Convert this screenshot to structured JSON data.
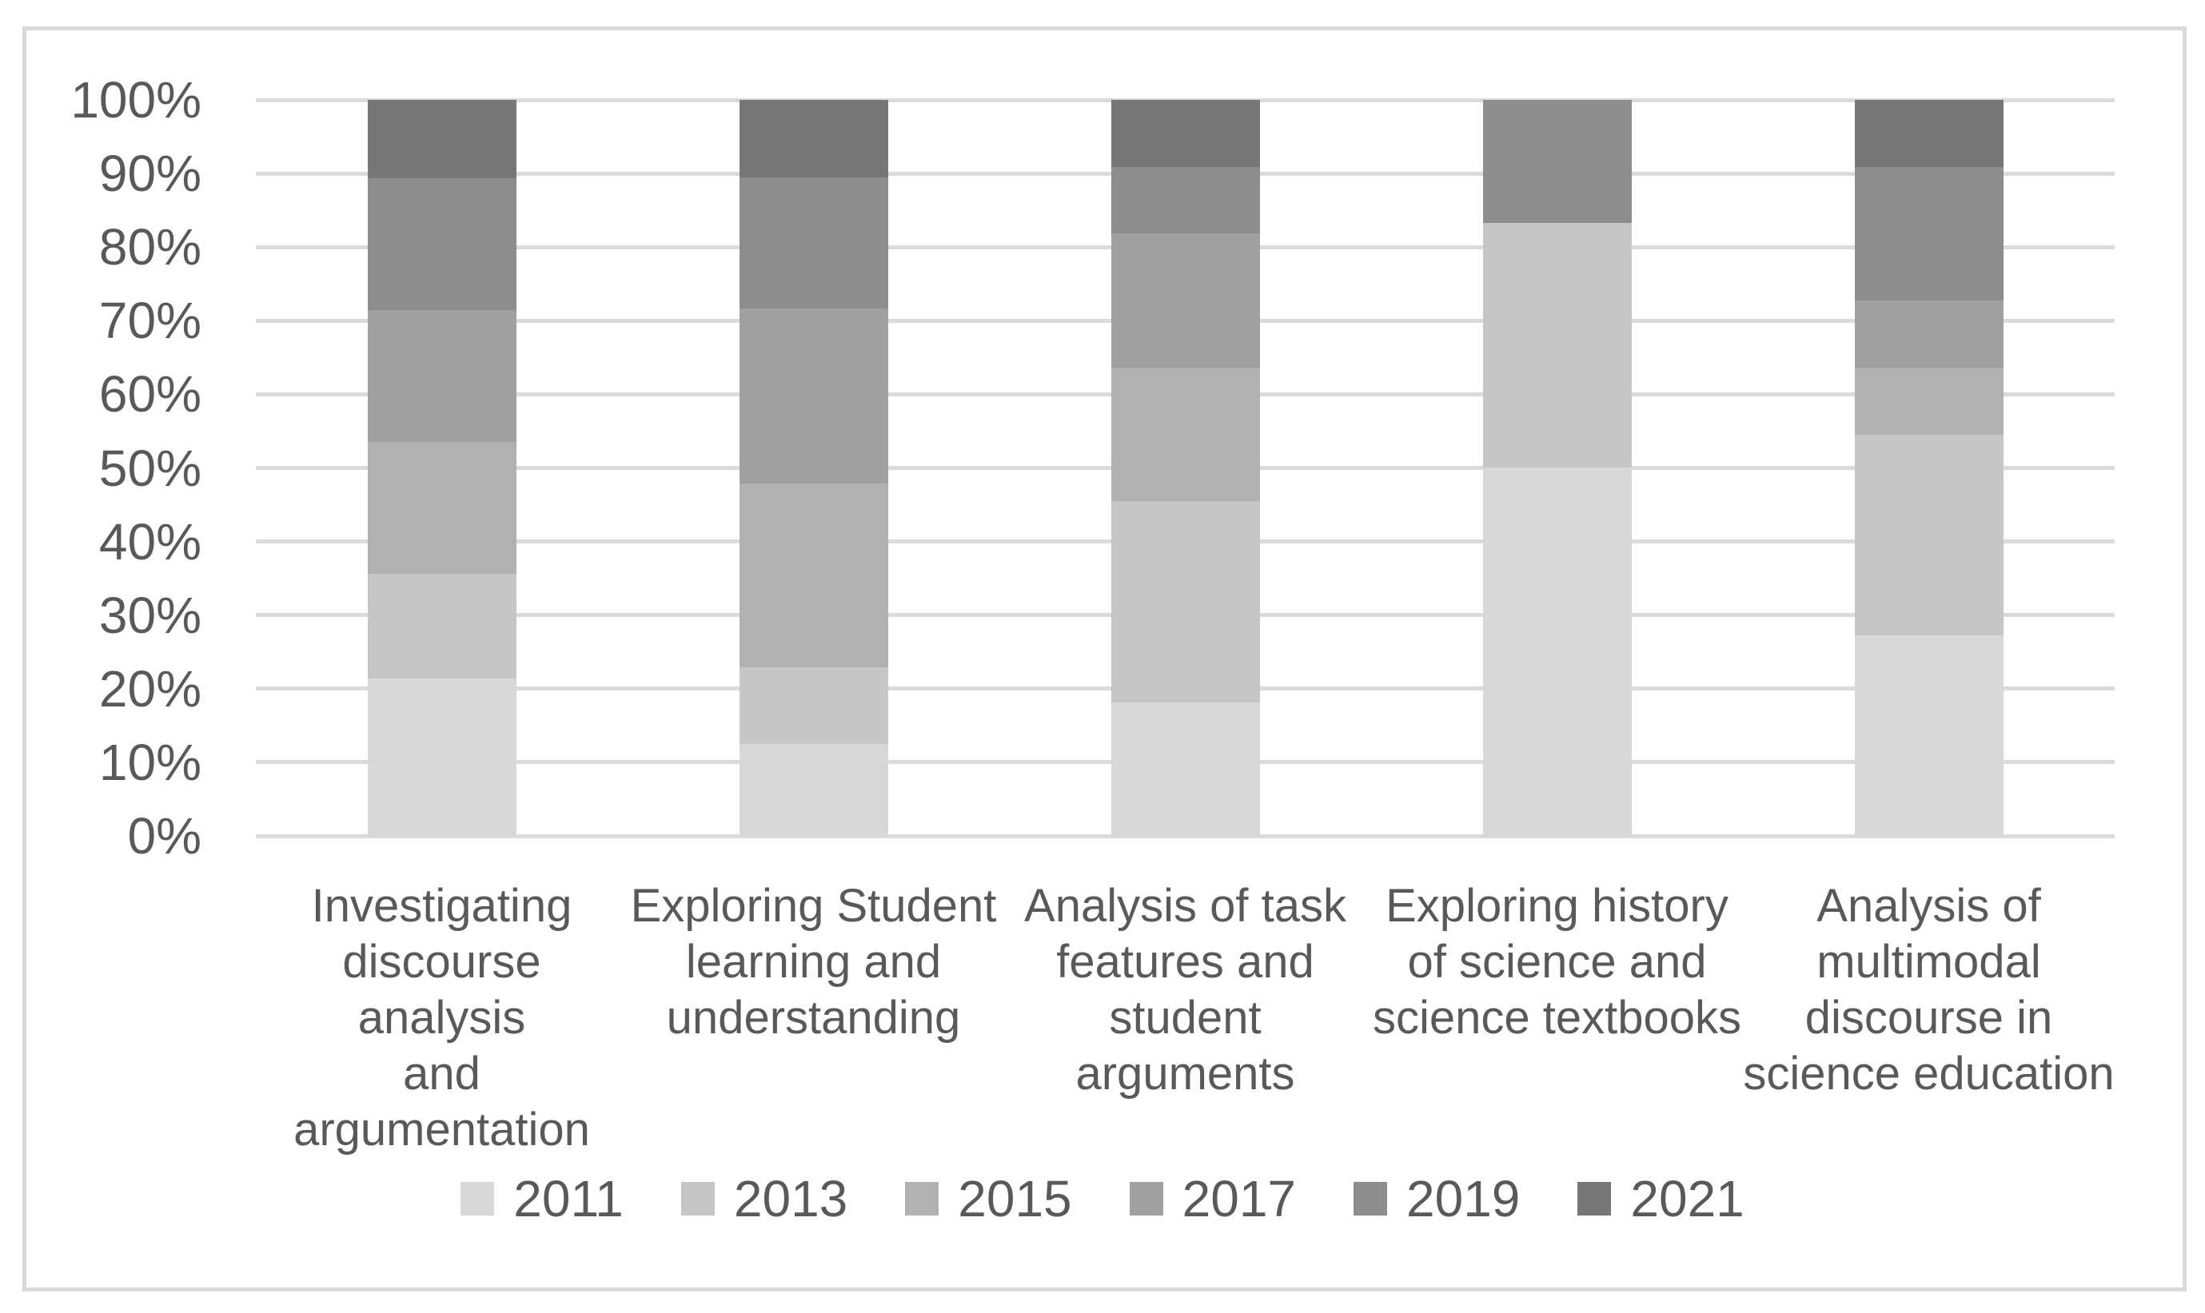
{
  "figure": {
    "background": "#ffffff",
    "frame_border_color": "#d9d9d9",
    "text_color": "#595959"
  },
  "chart_data": {
    "type": "bar",
    "stacking": "percent",
    "title": "",
    "xlabel": "",
    "ylabel": "",
    "grid": true,
    "gridline_color": "#dadada",
    "legend_position": "bottom",
    "ylim": [
      0,
      100
    ],
    "y_ticks_top_to_bottom": [
      "100%",
      "90%",
      "80%",
      "70%",
      "60%",
      "50%",
      "40%",
      "30%",
      "20%",
      "10%",
      "0%"
    ],
    "categories": [
      "Investigating\ndiscourse analysis\nand argumentation",
      "Exploring Student\nlearning and\nunderstanding",
      "Analysis of task\nfeatures and\nstudent arguments",
      "Exploring history\nof science and\nscience textbooks",
      "Analysis of\nmultimodal\ndiscourse in\nscience education"
    ],
    "series": [
      {
        "name": "2011",
        "color": "#d8d8d8",
        "values": [
          21.4,
          12.5,
          18.2,
          50.0,
          27.3
        ]
      },
      {
        "name": "2013",
        "color": "#c6c6c6",
        "values": [
          14.3,
          10.4,
          27.3,
          33.3,
          27.3
        ]
      },
      {
        "name": "2015",
        "color": "#b1b1b1",
        "values": [
          17.9,
          25.0,
          18.2,
          0.0,
          9.1
        ]
      },
      {
        "name": "2017",
        "color": "#a0a0a0",
        "values": [
          17.9,
          23.8,
          18.2,
          0.0,
          9.1
        ]
      },
      {
        "name": "2019",
        "color": "#8d8d8d",
        "values": [
          17.9,
          17.8,
          9.1,
          16.7,
          18.2
        ]
      },
      {
        "name": "2021",
        "color": "#777777",
        "values": [
          10.7,
          10.5,
          9.1,
          0.0,
          9.1
        ]
      }
    ]
  }
}
